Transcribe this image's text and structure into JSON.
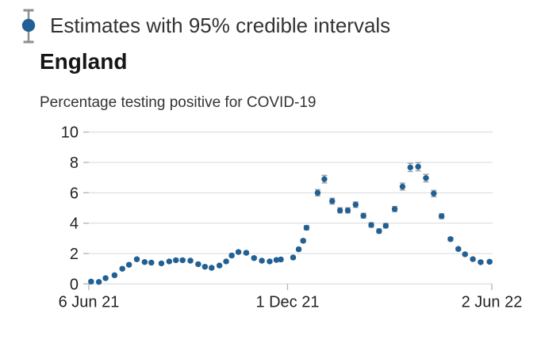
{
  "legend": {
    "label": "Estimates with 95% credible intervals"
  },
  "header": {
    "title": "England"
  },
  "chart_data": {
    "type": "scatter",
    "title": "Percentage testing positive for COVID-19",
    "ylim": [
      0,
      10
    ],
    "yticks": [
      0,
      2,
      4,
      6,
      8,
      10
    ],
    "grid": "horizontal",
    "x_unit": "days since 6 Jun 2021",
    "xlim_days": [
      0,
      361
    ],
    "xticks": [
      {
        "label": "6 Jun 21",
        "day": 0
      },
      {
        "label": "1 Dec 21",
        "day": 178
      },
      {
        "label": "2 Jun 22",
        "day": 361
      }
    ],
    "legend_position": "top-left",
    "colors": {
      "gridline": "#e0e0e0",
      "tick": "#b3b3b3",
      "text": "#222222",
      "marker": "#206095",
      "error_bar": "#9e9e9e"
    },
    "series": [
      {
        "name": "Estimates with 95% credible intervals",
        "marker_color": "#206095",
        "error_bar_color": "#9e9e9e",
        "points": [
          {
            "d": 2,
            "v": 0.15,
            "ci": 0.08
          },
          {
            "d": 9,
            "v": 0.13,
            "ci": 0.08
          },
          {
            "d": 15,
            "v": 0.38,
            "ci": 0.08
          },
          {
            "d": 23,
            "v": 0.57,
            "ci": 0.08
          },
          {
            "d": 30,
            "v": 1.0,
            "ci": 0.08
          },
          {
            "d": 36,
            "v": 1.26,
            "ci": 0.08
          },
          {
            "d": 43,
            "v": 1.62,
            "ci": 0.08
          },
          {
            "d": 50,
            "v": 1.44,
            "ci": 0.08
          },
          {
            "d": 56,
            "v": 1.4,
            "ci": 0.08
          },
          {
            "d": 65,
            "v": 1.35,
            "ci": 0.08
          },
          {
            "d": 72,
            "v": 1.48,
            "ci": 0.08
          },
          {
            "d": 78,
            "v": 1.56,
            "ci": 0.08
          },
          {
            "d": 84,
            "v": 1.56,
            "ci": 0.08
          },
          {
            "d": 91,
            "v": 1.53,
            "ci": 0.08
          },
          {
            "d": 98,
            "v": 1.3,
            "ci": 0.08
          },
          {
            "d": 104,
            "v": 1.13,
            "ci": 0.08
          },
          {
            "d": 110,
            "v": 1.06,
            "ci": 0.08
          },
          {
            "d": 117,
            "v": 1.21,
            "ci": 0.08
          },
          {
            "d": 123,
            "v": 1.48,
            "ci": 0.08
          },
          {
            "d": 128,
            "v": 1.87,
            "ci": 0.09
          },
          {
            "d": 134,
            "v": 2.1,
            "ci": 0.09
          },
          {
            "d": 141,
            "v": 2.05,
            "ci": 0.09
          },
          {
            "d": 148,
            "v": 1.7,
            "ci": 0.08
          },
          {
            "d": 155,
            "v": 1.53,
            "ci": 0.08
          },
          {
            "d": 162,
            "v": 1.48,
            "ci": 0.08
          },
          {
            "d": 168,
            "v": 1.58,
            "ci": 0.08
          },
          {
            "d": 172,
            "v": 1.61,
            "ci": 0.08
          },
          {
            "d": 183,
            "v": 1.74,
            "ci": 0.09
          },
          {
            "d": 188,
            "v": 2.28,
            "ci": 0.1
          },
          {
            "d": 192,
            "v": 2.84,
            "ci": 0.11
          },
          {
            "d": 195,
            "v": 3.7,
            "ci": 0.14
          },
          {
            "d": 205,
            "v": 6.0,
            "ci": 0.21
          },
          {
            "d": 211,
            "v": 6.9,
            "ci": 0.25
          },
          {
            "d": 218,
            "v": 5.45,
            "ci": 0.19
          },
          {
            "d": 225,
            "v": 4.84,
            "ci": 0.17
          },
          {
            "d": 232,
            "v": 4.84,
            "ci": 0.17
          },
          {
            "d": 239,
            "v": 5.22,
            "ci": 0.18
          },
          {
            "d": 246,
            "v": 4.49,
            "ci": 0.16
          },
          {
            "d": 253,
            "v": 3.88,
            "ci": 0.14
          },
          {
            "d": 260,
            "v": 3.48,
            "ci": 0.13
          },
          {
            "d": 266,
            "v": 3.83,
            "ci": 0.14
          },
          {
            "d": 274,
            "v": 4.93,
            "ci": 0.17
          },
          {
            "d": 281,
            "v": 6.41,
            "ci": 0.23
          },
          {
            "d": 288,
            "v": 7.67,
            "ci": 0.27
          },
          {
            "d": 295,
            "v": 7.72,
            "ci": 0.27
          },
          {
            "d": 302,
            "v": 6.97,
            "ci": 0.25
          },
          {
            "d": 309,
            "v": 5.95,
            "ci": 0.21
          },
          {
            "d": 316,
            "v": 4.46,
            "ci": 0.16
          },
          {
            "d": 324,
            "v": 2.95,
            "ci": 0.11
          },
          {
            "d": 331,
            "v": 2.3,
            "ci": 0.1
          },
          {
            "d": 337,
            "v": 1.95,
            "ci": 0.09
          },
          {
            "d": 344,
            "v": 1.63,
            "ci": 0.08
          },
          {
            "d": 351,
            "v": 1.43,
            "ci": 0.08
          },
          {
            "d": 359,
            "v": 1.46,
            "ci": 0.08
          }
        ]
      }
    ]
  }
}
